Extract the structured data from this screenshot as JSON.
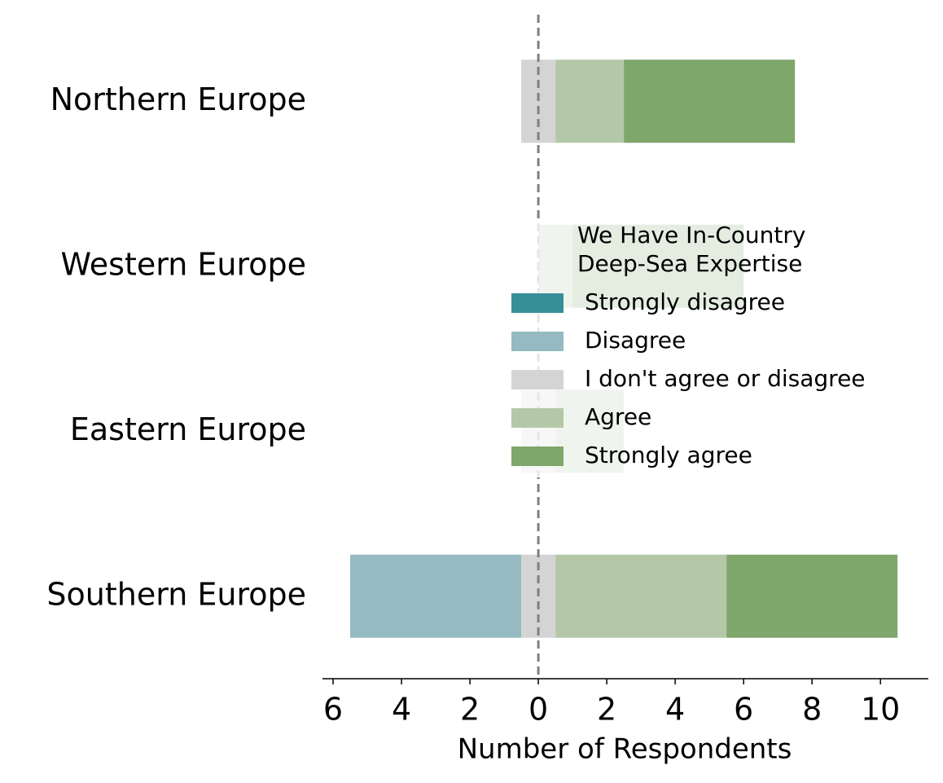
{
  "chart_data": {
    "type": "diverging_bar",
    "categories": [
      "Northern Europe",
      "Western Europe",
      "Eastern Europe",
      "Southern Europe"
    ],
    "series": [
      {
        "name": "Strongly disagree",
        "color": "#368f98",
        "values": [
          0,
          0,
          0,
          0
        ],
        "side": "negative"
      },
      {
        "name": "Disagree",
        "color": "#95bac1",
        "values": [
          0,
          0,
          0,
          5
        ],
        "side": "negative"
      },
      {
        "name": "I don't agree or disagree",
        "color": "#d4d4d4",
        "values": [
          1,
          0,
          1,
          1
        ],
        "side": "neutral"
      },
      {
        "name": "Agree",
        "color": "#b4c8a8",
        "values": [
          2,
          1,
          2,
          5
        ],
        "side": "positive"
      },
      {
        "name": "Strongly agree",
        "color": "#7fa66b",
        "values": [
          5,
          5,
          0,
          5
        ],
        "side": "positive"
      }
    ],
    "legend_title": [
      "We Have In-Country",
      "Deep-Sea Expertise"
    ],
    "xlabel": "Number of Respondents",
    "xlim": [
      -6.31,
      11.4
    ],
    "xticks": [
      {
        "value": -6,
        "label": "6"
      },
      {
        "value": -4,
        "label": "4"
      },
      {
        "value": -2,
        "label": "2"
      },
      0,
      2,
      4,
      6,
      8,
      10
    ],
    "zero_line": true
  }
}
